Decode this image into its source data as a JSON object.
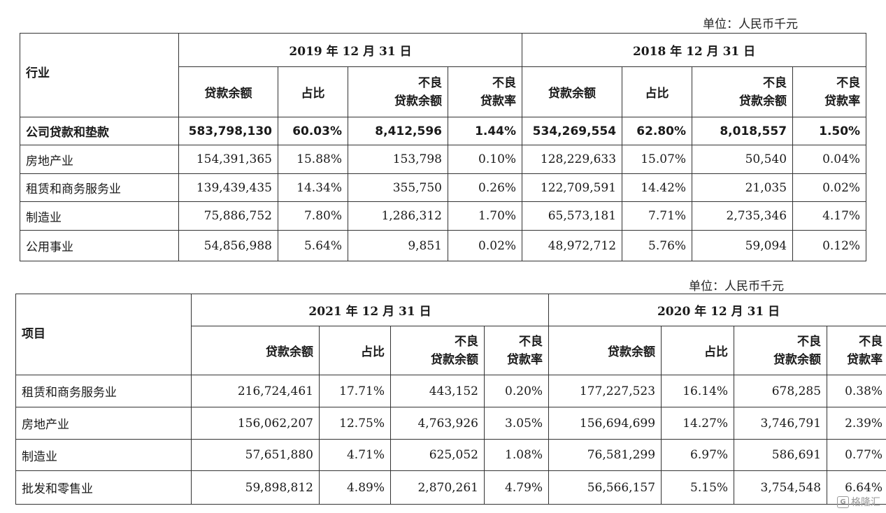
{
  "table1": {
    "unit": "单位：人民币千元",
    "row_header": "行业",
    "periods": [
      "2019 年 12 月 31 日",
      "2018 年 12 月 31 日"
    ],
    "col_labels": {
      "balance": "贷款余额",
      "ratio": "占比",
      "npl_top": "不良",
      "npl_bottom": "贷款余额",
      "rate_top": "不良",
      "rate_bottom": "贷款率"
    },
    "rows": [
      {
        "name": "公司贷款和垫款",
        "bold": true,
        "v": [
          "583,798,130",
          "60.03%",
          "8,412,596",
          "1.44%",
          "534,269,554",
          "62.80%",
          "8,018,557",
          "1.50%"
        ]
      },
      {
        "name": "房地产业",
        "v": [
          "154,391,365",
          "15.88%",
          "153,798",
          "0.10%",
          "128,229,633",
          "15.07%",
          "50,540",
          "0.04%"
        ]
      },
      {
        "name": "租赁和商务服务业",
        "v": [
          "139,439,435",
          "14.34%",
          "355,750",
          "0.26%",
          "122,709,591",
          "14.42%",
          "21,035",
          "0.02%"
        ]
      },
      {
        "name": "制造业",
        "v": [
          "75,886,752",
          "7.80%",
          "1,286,312",
          "1.70%",
          "65,573,181",
          "7.71%",
          "2,735,346",
          "4.17%"
        ]
      },
      {
        "name": "公用事业",
        "v": [
          "54,856,988",
          "5.64%",
          "9,851",
          "0.02%",
          "48,972,712",
          "5.76%",
          "59,094",
          "0.12%"
        ]
      }
    ]
  },
  "table2": {
    "unit": "单位：人民币千元",
    "row_header": "项目",
    "periods": [
      "2021 年 12 月 31 日",
      "2020 年 12 月 31 日"
    ],
    "col_labels": {
      "balance": "贷款余额",
      "ratio": "占比",
      "npl_top": "不良",
      "npl_bottom": "贷款余额",
      "rate_top": "不良",
      "rate_bottom": "贷款率"
    },
    "rows": [
      {
        "name": "租赁和商务服务业",
        "v": [
          "216,724,461",
          "17.71%",
          "443,152",
          "0.20%",
          "177,227,523",
          "16.14%",
          "678,285",
          "0.38%"
        ]
      },
      {
        "name": "房地产业",
        "v": [
          "156,062,207",
          "12.75%",
          "4,763,926",
          "3.05%",
          "156,694,699",
          "14.27%",
          "3,746,791",
          "2.39%"
        ]
      },
      {
        "name": "制造业",
        "v": [
          "57,651,880",
          "4.71%",
          "625,052",
          "1.08%",
          "76,581,299",
          "6.97%",
          "586,691",
          "0.77%"
        ]
      },
      {
        "name": "批发和零售业",
        "v": [
          "59,898,812",
          "4.89%",
          "2,870,261",
          "4.79%",
          "56,566,157",
          "5.15%",
          "3,754,548",
          "6.64%"
        ]
      }
    ]
  },
  "watermark": {
    "icon": "gelonghui-logo-icon",
    "text": "格隆汇"
  }
}
